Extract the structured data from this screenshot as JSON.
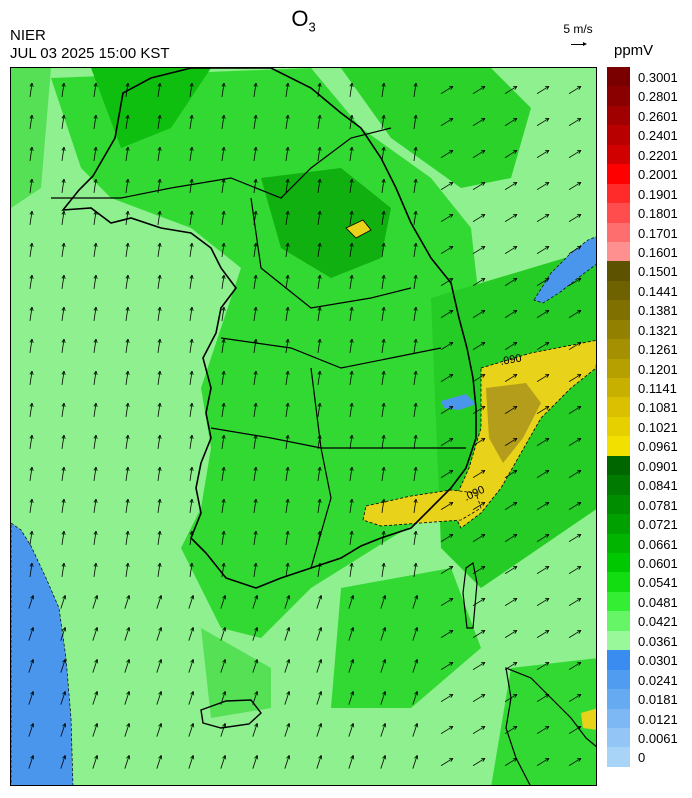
{
  "header": {
    "agency": "NIER",
    "datetime": "JUL 03 2025 15:00 KST",
    "title_main": "O",
    "title_sub": "3",
    "wind_ref_label": "5 m/s",
    "unit": "ppmV"
  },
  "map": {
    "contour_labels": [
      ".090",
      ".090"
    ],
    "features": [
      "ozone-concentration-field",
      "wind-vectors",
      "coastline",
      "province-boundaries",
      "district-boundaries"
    ]
  },
  "legend": {
    "labels": [
      "0.3001",
      "0.2801",
      "0.2601",
      "0.2401",
      "0.2201",
      "0.2001",
      "0.1901",
      "0.1801",
      "0.1701",
      "0.1601",
      "0.1501",
      "0.1441",
      "0.1381",
      "0.1321",
      "0.1261",
      "0.1201",
      "0.1141",
      "0.1081",
      "0.1021",
      "0.0961",
      "0.0901",
      "0.0841",
      "0.0781",
      "0.0721",
      "0.0661",
      "0.0601",
      "0.0541",
      "0.0481",
      "0.0421",
      "0.0361",
      "0.0301",
      "0.0241",
      "0.0181",
      "0.0121",
      "0.0061",
      "0"
    ],
    "colors": [
      "#7a0000",
      "#8a0000",
      "#a00000",
      "#b80000",
      "#d00000",
      "#ff0000",
      "#ff2a2a",
      "#ff4d4d",
      "#ff6e6e",
      "#ff9090",
      "#5c5200",
      "#6e6200",
      "#807000",
      "#928000",
      "#a49000",
      "#b6a000",
      "#c8b000",
      "#dac000",
      "#e6d000",
      "#f2e000",
      "#006600",
      "#007a00",
      "#008e00",
      "#00a000",
      "#00b400",
      "#00c800",
      "#11dd11",
      "#33ee33",
      "#66f566",
      "#99f899",
      "#3a8cf0",
      "#4f9cf0",
      "#66aaf2",
      "#7db8f4",
      "#93c6f6",
      "#a8d4f8"
    ]
  },
  "colors": {
    "low_ozone": "#4a96ec",
    "moderate": "#8ff08f",
    "high_green": "#1fd61f",
    "exceed": "#e8d21a",
    "exceed_dark": "#b59d1c"
  }
}
